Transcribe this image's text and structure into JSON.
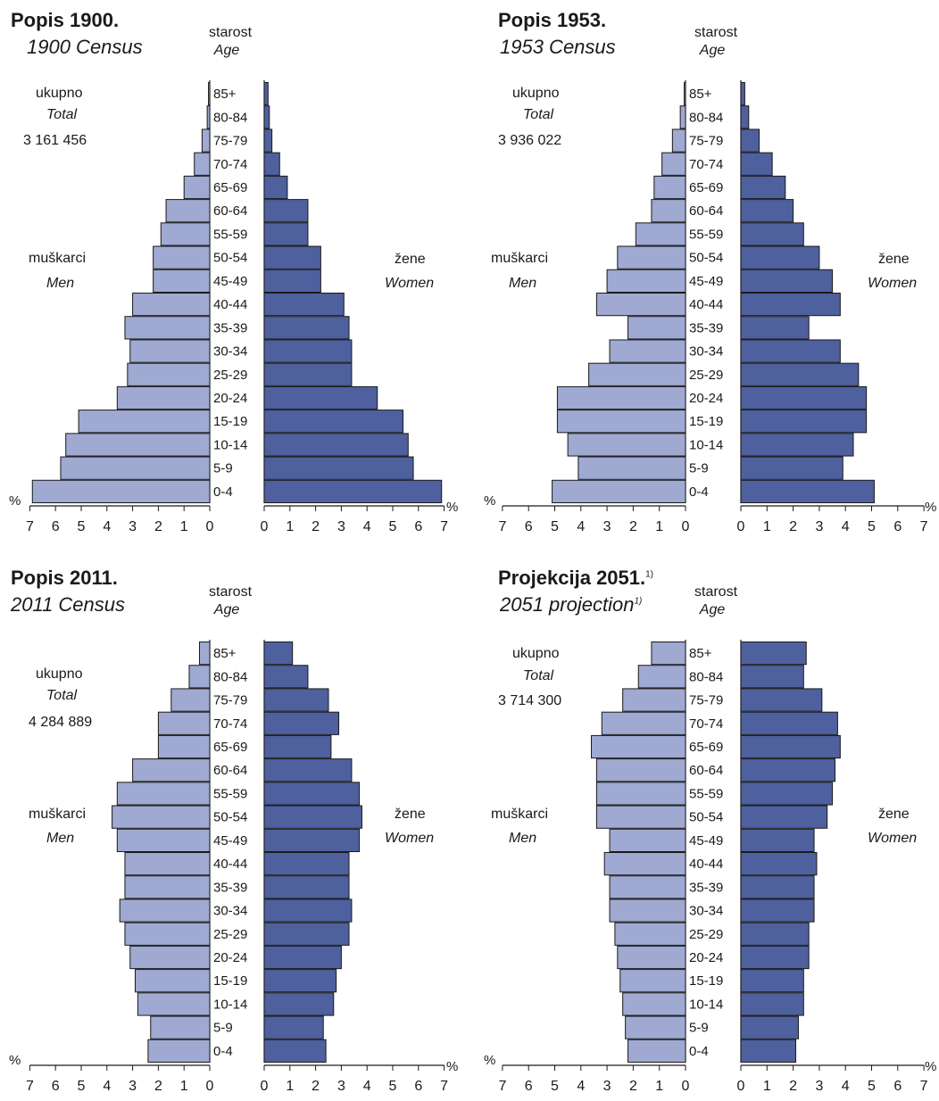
{
  "labels": {
    "age": "starost",
    "age_en": "Age",
    "total": "ukupno",
    "total_en": "Total",
    "men": "muškarci",
    "men_en": "Men",
    "women": "žene",
    "women_en": "Women",
    "pct": "%",
    "footnote_mark": "1)"
  },
  "colors": {
    "men": "#9fa9d1",
    "women": "#4f609f",
    "outline": "#1a1a1a"
  },
  "chart_data": [
    {
      "type": "bar",
      "subtype": "population-pyramid",
      "title": "Popis 1900.",
      "subtitle": "1900 Census",
      "total": "3 161 456",
      "categories": [
        "0-4",
        "5-9",
        "10-14",
        "15-19",
        "20-24",
        "25-29",
        "30-34",
        "35-39",
        "40-44",
        "45-49",
        "50-54",
        "55-59",
        "60-64",
        "65-69",
        "70-74",
        "75-79",
        "80-84",
        "85+"
      ],
      "series": [
        {
          "name": "muškarci",
          "values": [
            6.9,
            5.8,
            5.6,
            5.1,
            3.6,
            3.2,
            3.1,
            3.3,
            3.0,
            2.2,
            2.2,
            1.9,
            1.7,
            1.0,
            0.6,
            0.3,
            0.1,
            0.05
          ]
        },
        {
          "name": "žene",
          "values": [
            6.9,
            5.8,
            5.6,
            5.4,
            4.4,
            3.4,
            3.4,
            3.3,
            3.1,
            2.2,
            2.2,
            1.7,
            1.7,
            0.9,
            0.6,
            0.3,
            0.2,
            0.15
          ]
        }
      ],
      "xlim": [
        0,
        7
      ],
      "x_ticks": [
        "7",
        "6",
        "5",
        "4",
        "3",
        "2",
        "1",
        "0"
      ],
      "x_ticks_right": [
        "0",
        "1",
        "2",
        "3",
        "4",
        "5",
        "6",
        "7"
      ]
    },
    {
      "type": "bar",
      "subtype": "population-pyramid",
      "title": "Popis 1953.",
      "subtitle": "1953 Census",
      "total": "3 936 022",
      "categories": [
        "0-4",
        "5-9",
        "10-14",
        "15-19",
        "20-24",
        "25-29",
        "30-34",
        "35-39",
        "40-44",
        "45-49",
        "50-54",
        "55-59",
        "60-64",
        "65-69",
        "70-74",
        "75-79",
        "80-84",
        "85+"
      ],
      "series": [
        {
          "name": "muškarci",
          "values": [
            5.1,
            4.1,
            4.5,
            4.9,
            4.9,
            3.7,
            2.9,
            2.2,
            3.4,
            3.0,
            2.6,
            1.9,
            1.3,
            1.2,
            0.9,
            0.5,
            0.2,
            0.05
          ]
        },
        {
          "name": "žene",
          "values": [
            5.1,
            3.9,
            4.3,
            4.8,
            4.8,
            4.5,
            3.8,
            2.6,
            3.8,
            3.5,
            3.0,
            2.4,
            2.0,
            1.7,
            1.2,
            0.7,
            0.3,
            0.15
          ]
        }
      ],
      "xlim": [
        0,
        7
      ],
      "x_ticks": [
        "7",
        "6",
        "5",
        "4",
        "3",
        "2",
        "1",
        "0"
      ],
      "x_ticks_right": [
        "0",
        "1",
        "2",
        "3",
        "4",
        "5",
        "6",
        "7"
      ]
    },
    {
      "type": "bar",
      "subtype": "population-pyramid",
      "title": "Popis 2011.",
      "subtitle": "2011 Census",
      "total": "4 284 889",
      "categories": [
        "0-4",
        "5-9",
        "10-14",
        "15-19",
        "20-24",
        "25-29",
        "30-34",
        "35-39",
        "40-44",
        "45-49",
        "50-54",
        "55-59",
        "60-64",
        "65-69",
        "70-74",
        "75-79",
        "80-84",
        "85+"
      ],
      "series": [
        {
          "name": "muškarci",
          "values": [
            2.4,
            2.3,
            2.8,
            2.9,
            3.1,
            3.3,
            3.5,
            3.3,
            3.3,
            3.6,
            3.8,
            3.6,
            3.0,
            2.0,
            2.0,
            1.5,
            0.8,
            0.4
          ]
        },
        {
          "name": "žene",
          "values": [
            2.4,
            2.3,
            2.7,
            2.8,
            3.0,
            3.3,
            3.4,
            3.3,
            3.3,
            3.7,
            3.8,
            3.7,
            3.4,
            2.6,
            2.9,
            2.5,
            1.7,
            1.1
          ]
        }
      ],
      "xlim": [
        0,
        7
      ],
      "x_ticks": [
        "7",
        "6",
        "5",
        "4",
        "3",
        "2",
        "1",
        "0"
      ],
      "x_ticks_right": [
        "0",
        "1",
        "2",
        "3",
        "4",
        "5",
        "6",
        "7"
      ]
    },
    {
      "type": "bar",
      "subtype": "population-pyramid",
      "title": "Projekcija 2051.",
      "subtitle": "2051 projection",
      "title_footnote": "1)",
      "total": "3 714 300",
      "categories": [
        "0-4",
        "5-9",
        "10-14",
        "15-19",
        "20-24",
        "25-29",
        "30-34",
        "35-39",
        "40-44",
        "45-49",
        "50-54",
        "55-59",
        "60-64",
        "65-69",
        "70-74",
        "75-79",
        "80-84",
        "85+"
      ],
      "series": [
        {
          "name": "muškarci",
          "values": [
            2.2,
            2.3,
            2.4,
            2.5,
            2.6,
            2.7,
            2.9,
            2.9,
            3.1,
            2.9,
            3.4,
            3.4,
            3.4,
            3.6,
            3.2,
            2.4,
            1.8,
            1.3
          ]
        },
        {
          "name": "žene",
          "values": [
            2.1,
            2.2,
            2.4,
            2.4,
            2.6,
            2.6,
            2.8,
            2.8,
            2.9,
            2.8,
            3.3,
            3.5,
            3.6,
            3.8,
            3.7,
            3.1,
            2.4,
            2.5
          ]
        }
      ],
      "xlim": [
        0,
        7
      ],
      "x_ticks": [
        "7",
        "6",
        "5",
        "4",
        "3",
        "2",
        "1",
        "0"
      ],
      "x_ticks_right": [
        "0",
        "1",
        "2",
        "3",
        "4",
        "5",
        "6",
        "7"
      ]
    }
  ]
}
